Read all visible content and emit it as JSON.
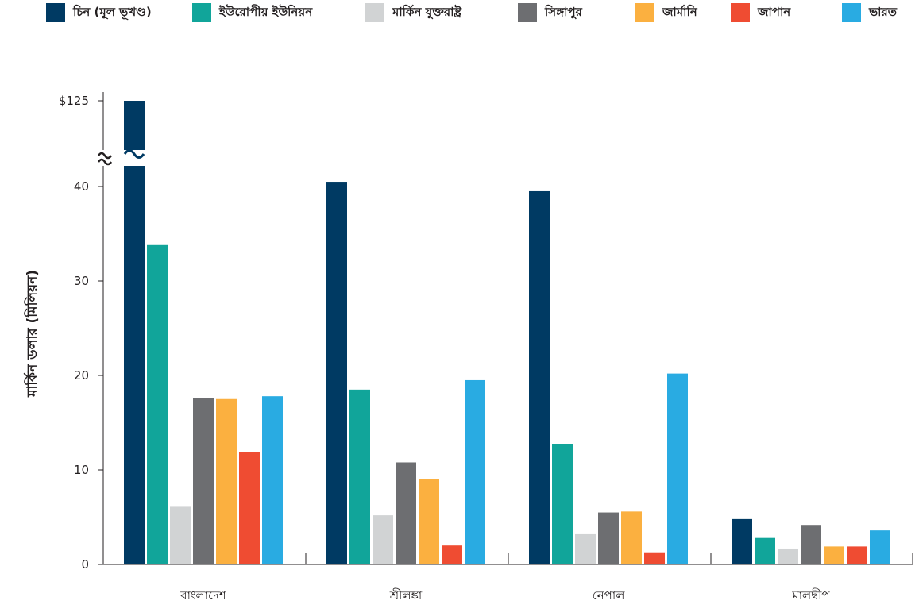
{
  "chart_data": {
    "type": "bar",
    "ylabel": "মার্কিন ডলার (মিলিয়ন)",
    "xlabel": "",
    "categories": [
      "বাংলাদেশ",
      "শ্রীলঙ্কা",
      "নেপাল",
      "মালদ্বীপ"
    ],
    "ylim": [
      0,
      50
    ],
    "yticks": [
      {
        "value": 0,
        "label": "0"
      },
      {
        "value": 10,
        "label": "10"
      },
      {
        "value": 20,
        "label": "20"
      },
      {
        "value": 30,
        "label": "30"
      },
      {
        "value": 40,
        "label": "40"
      },
      {
        "value": 125,
        "label": "$125"
      }
    ],
    "axis_break": {
      "between": [
        40,
        125
      ],
      "symbol": "~~"
    },
    "grid": false,
    "legend_position": "top",
    "series": [
      {
        "name": "চিন (মূল ভূখণ্ড)",
        "color": "#003a63",
        "values": [
          125,
          40.5,
          39.5,
          4.8
        ]
      },
      {
        "name": "ইউরোপীয় ইউনিয়ন",
        "color": "#11a59a",
        "values": [
          33.8,
          18.5,
          12.7,
          2.8
        ]
      },
      {
        "name": "মার্কিন যুক্তরাষ্ট্র",
        "color": "#d1d3d4",
        "values": [
          6.1,
          5.2,
          3.2,
          1.6
        ]
      },
      {
        "name": "সিঙ্গাপুর",
        "color": "#6d6e71",
        "values": [
          17.6,
          10.8,
          5.5,
          4.1
        ]
      },
      {
        "name": "জার্মানি",
        "color": "#fbb040",
        "values": [
          17.5,
          9.0,
          5.6,
          1.9
        ]
      },
      {
        "name": "জাপান",
        "color": "#ef4c32",
        "values": [
          11.9,
          2.0,
          1.2,
          1.9
        ]
      },
      {
        "name": "ভারত",
        "color": "#29abe2",
        "values": [
          17.8,
          19.5,
          20.2,
          3.6
        ]
      }
    ]
  }
}
